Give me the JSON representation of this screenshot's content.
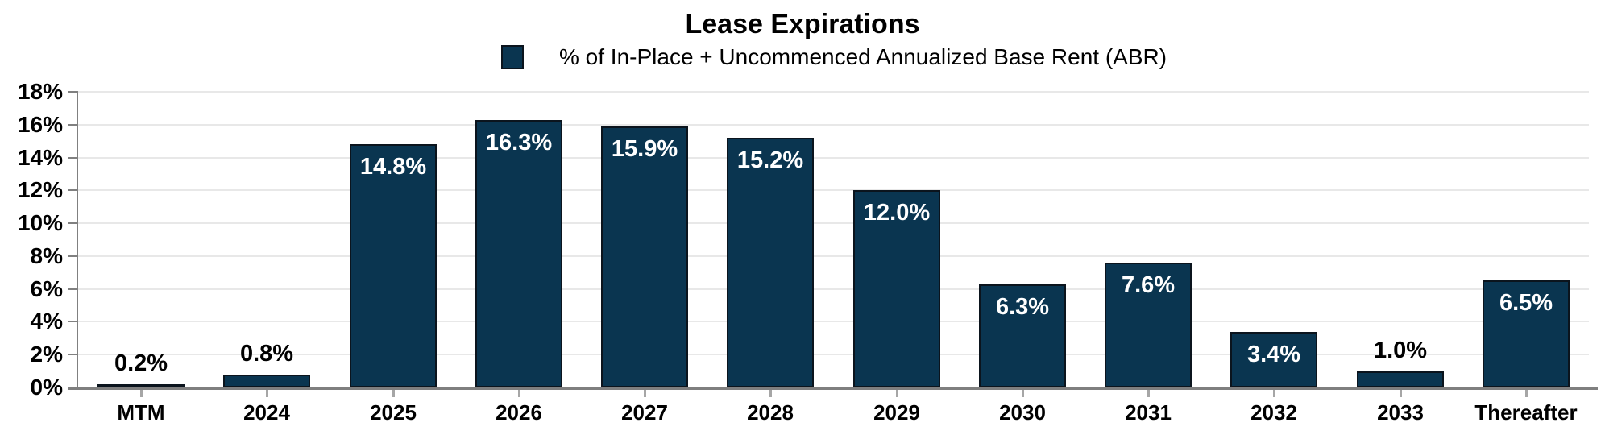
{
  "chart_data": {
    "type": "bar",
    "title": "Lease Expirations",
    "legend": "% of In-Place + Uncommenced Annualized Base Rent (ABR)",
    "legend_position": "top",
    "categories": [
      "MTM",
      "2024",
      "2025",
      "2026",
      "2027",
      "2028",
      "2029",
      "2030",
      "2031",
      "2032",
      "2033",
      "Thereafter"
    ],
    "values": [
      0.2,
      0.8,
      14.8,
      16.3,
      15.9,
      15.2,
      12.0,
      6.3,
      7.6,
      3.4,
      1.0,
      6.5
    ],
    "value_labels": [
      "0.2%",
      "0.8%",
      "14.8%",
      "16.3%",
      "15.9%",
      "15.2%",
      "12.0%",
      "6.3%",
      "7.6%",
      "3.4%",
      "1.0%",
      "6.5%"
    ],
    "xlabel": "",
    "ylabel": "",
    "ylim": [
      0,
      18
    ],
    "ytick_step": 2,
    "ytick_labels": [
      "0%",
      "2%",
      "4%",
      "6%",
      "8%",
      "10%",
      "12%",
      "14%",
      "16%",
      "18%"
    ],
    "grid": "horizontal",
    "colors": {
      "bar_fill": "#0A3550",
      "bar_border": "#0B141D",
      "label_inside": "#FFFFFF",
      "label_outside": "#000000",
      "gridline": "#E8E8E8",
      "y_axis": "#808080",
      "x_axis": "#7F7F7F",
      "x_tick": "#A6A6A6",
      "text": "#000000"
    },
    "inside_label_threshold": 3.0
  }
}
